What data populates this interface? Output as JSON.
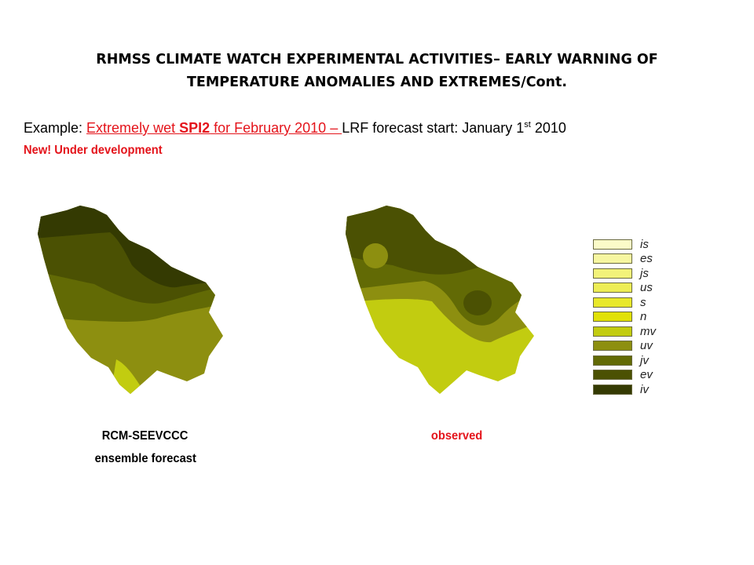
{
  "title": {
    "line1": "RHMSS CLIMATE WATCH EXPERIMENTAL ACTIVITIES– EARLY WARNING OF",
    "line2": "TEMPERATURE ANOMALIES AND EXTREMES/Cont."
  },
  "example": {
    "prefix": "Example: ",
    "red_part1": "Extremely wet ",
    "red_bold": "SPI2",
    "red_part2": " for February 2010 – ",
    "suffix": "LRF forecast start: January 1",
    "sup": "st",
    "year": " 2010"
  },
  "note": "New! Under development",
  "maps": {
    "forecast_label_line1": "RCM-SEEVCCC",
    "forecast_label_line2": "ensemble forecast",
    "observed_label": "observed"
  },
  "legend": {
    "items": [
      {
        "code": "is",
        "color": "#fbfbc8"
      },
      {
        "code": "es",
        "color": "#f6f6a0"
      },
      {
        "code": "js",
        "color": "#f2f27a"
      },
      {
        "code": "us",
        "color": "#eded55"
      },
      {
        "code": "s",
        "color": "#e8e82a"
      },
      {
        "code": "n",
        "color": "#e1e108"
      },
      {
        "code": "mv",
        "color": "#c2cc10"
      },
      {
        "code": "uv",
        "color": "#8d8f10"
      },
      {
        "code": "jv",
        "color": "#626a05"
      },
      {
        "code": "ev",
        "color": "#4b5103"
      },
      {
        "code": "iv",
        "color": "#343a02"
      }
    ]
  }
}
